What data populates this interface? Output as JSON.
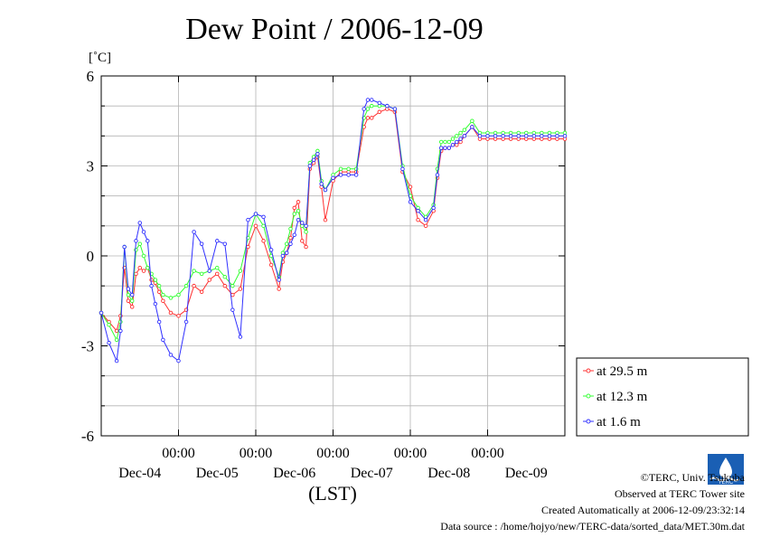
{
  "chart_data": {
    "type": "line",
    "title": "Dew Point / 2006-12-09",
    "ylabel": "[˚C]",
    "xlabel": "(LST)",
    "ylim": [
      -6,
      6
    ],
    "xlim": [
      -1.0,
      5.0
    ],
    "yticks": [
      6,
      3,
      0,
      -3,
      -6
    ],
    "yticklabels": [
      "6",
      "3",
      "0",
      "-3",
      "-6"
    ],
    "xticks": [
      0,
      1,
      2,
      3,
      4
    ],
    "xticklabels": [
      "00:00",
      "00:00",
      "00:00",
      "00:00",
      "00:00"
    ],
    "xdaylabels": [
      {
        "x": -0.5,
        "label": "Dec-04"
      },
      {
        "x": 0.5,
        "label": "Dec-05"
      },
      {
        "x": 1.5,
        "label": "Dec-06"
      },
      {
        "x": 2.5,
        "label": "Dec-07"
      },
      {
        "x": 3.5,
        "label": "Dec-08"
      },
      {
        "x": 4.5,
        "label": "Dec-09"
      }
    ],
    "grid": true,
    "legend_position": "right",
    "series": [
      {
        "name": "at 29.5 m",
        "color": "#ff3030",
        "x": [
          -1.0,
          -0.9,
          -0.8,
          -0.75,
          -0.7,
          -0.65,
          -0.6,
          -0.55,
          -0.5,
          -0.45,
          -0.4,
          -0.35,
          -0.3,
          -0.25,
          -0.2,
          -0.1,
          0.0,
          0.1,
          0.2,
          0.3,
          0.4,
          0.5,
          0.6,
          0.7,
          0.8,
          0.9,
          1.0,
          1.1,
          1.2,
          1.3,
          1.35,
          1.4,
          1.45,
          1.5,
          1.55,
          1.6,
          1.65,
          1.7,
          1.75,
          1.8,
          1.85,
          1.9,
          2.0,
          2.1,
          2.2,
          2.3,
          2.4,
          2.45,
          2.5,
          2.6,
          2.7,
          2.8,
          2.9,
          3.0,
          3.1,
          3.2,
          3.3,
          3.35,
          3.4,
          3.45,
          3.5,
          3.55,
          3.6,
          3.65,
          3.7,
          3.8,
          3.9,
          4.0,
          4.1,
          4.2,
          4.3,
          4.4,
          4.5,
          4.6,
          4.7,
          4.8,
          4.9,
          5.0
        ],
        "y": [
          -1.9,
          -2.2,
          -2.5,
          -2.0,
          -0.4,
          -1.5,
          -1.7,
          -0.6,
          -0.4,
          -0.5,
          -0.4,
          -0.8,
          -0.9,
          -1.2,
          -1.5,
          -1.9,
          -2.0,
          -1.8,
          -1.0,
          -1.2,
          -0.8,
          -0.6,
          -1.0,
          -1.3,
          -1.1,
          0.3,
          1.0,
          0.5,
          -0.3,
          -1.1,
          -0.2,
          0.1,
          0.6,
          1.6,
          1.8,
          0.5,
          0.3,
          2.9,
          3.1,
          3.3,
          2.3,
          1.2,
          2.5,
          2.8,
          2.8,
          2.8,
          4.3,
          4.6,
          4.6,
          4.8,
          4.9,
          4.8,
          2.8,
          2.3,
          1.2,
          1.0,
          1.5,
          2.6,
          3.5,
          3.6,
          3.6,
          3.7,
          3.7,
          3.8,
          4.0,
          4.3,
          3.9,
          3.9,
          3.9,
          3.9,
          3.9,
          3.9,
          3.9,
          3.9,
          3.9,
          3.9,
          3.9,
          3.9
        ]
      },
      {
        "name": "at 12.3 m",
        "color": "#30ff30",
        "x": [
          -1.0,
          -0.9,
          -0.8,
          -0.75,
          -0.7,
          -0.65,
          -0.6,
          -0.55,
          -0.5,
          -0.45,
          -0.4,
          -0.35,
          -0.3,
          -0.25,
          -0.2,
          -0.1,
          0.0,
          0.1,
          0.2,
          0.3,
          0.4,
          0.5,
          0.6,
          0.7,
          0.8,
          0.9,
          1.0,
          1.1,
          1.2,
          1.3,
          1.35,
          1.4,
          1.45,
          1.5,
          1.55,
          1.6,
          1.65,
          1.7,
          1.75,
          1.8,
          1.85,
          1.9,
          2.0,
          2.1,
          2.2,
          2.3,
          2.4,
          2.45,
          2.5,
          2.6,
          2.7,
          2.8,
          2.9,
          3.0,
          3.1,
          3.2,
          3.3,
          3.35,
          3.4,
          3.45,
          3.5,
          3.55,
          3.6,
          3.65,
          3.7,
          3.8,
          3.9,
          4.0,
          4.1,
          4.2,
          4.3,
          4.4,
          4.5,
          4.6,
          4.7,
          4.8,
          4.9,
          5.0
        ],
        "y": [
          -1.9,
          -2.3,
          -2.8,
          -2.2,
          0.3,
          -1.3,
          -1.5,
          0.2,
          0.4,
          0.0,
          -0.4,
          -0.6,
          -0.8,
          -1.0,
          -1.3,
          -1.4,
          -1.3,
          -1.0,
          -0.5,
          -0.6,
          -0.5,
          -0.4,
          -0.7,
          -1.0,
          -0.5,
          0.6,
          1.4,
          1.0,
          0.0,
          -0.7,
          0.1,
          0.4,
          0.9,
          1.4,
          1.5,
          1.0,
          0.8,
          3.1,
          3.3,
          3.5,
          2.5,
          2.2,
          2.7,
          2.9,
          2.9,
          2.9,
          4.6,
          4.9,
          5.0,
          5.0,
          5.0,
          4.9,
          3.0,
          2.0,
          1.6,
          1.3,
          1.7,
          2.9,
          3.8,
          3.8,
          3.8,
          3.9,
          4.0,
          4.1,
          4.2,
          4.5,
          4.1,
          4.1,
          4.1,
          4.1,
          4.1,
          4.1,
          4.1,
          4.1,
          4.1,
          4.1,
          4.1,
          4.1
        ]
      },
      {
        "name": "at 1.6 m",
        "color": "#3030ff",
        "x": [
          -1.0,
          -0.9,
          -0.8,
          -0.75,
          -0.7,
          -0.65,
          -0.6,
          -0.55,
          -0.5,
          -0.45,
          -0.4,
          -0.35,
          -0.3,
          -0.25,
          -0.2,
          -0.1,
          0.0,
          0.1,
          0.2,
          0.3,
          0.4,
          0.5,
          0.6,
          0.7,
          0.8,
          0.9,
          1.0,
          1.1,
          1.2,
          1.3,
          1.35,
          1.4,
          1.45,
          1.5,
          1.55,
          1.6,
          1.65,
          1.7,
          1.75,
          1.8,
          1.85,
          1.9,
          2.0,
          2.1,
          2.2,
          2.3,
          2.4,
          2.45,
          2.5,
          2.6,
          2.7,
          2.8,
          2.9,
          3.0,
          3.1,
          3.2,
          3.3,
          3.35,
          3.4,
          3.45,
          3.5,
          3.55,
          3.6,
          3.65,
          3.7,
          3.8,
          3.9,
          4.0,
          4.1,
          4.2,
          4.3,
          4.4,
          4.5,
          4.6,
          4.7,
          4.8,
          4.9,
          5.0
        ],
        "y": [
          -1.9,
          -2.9,
          -3.5,
          -2.5,
          0.3,
          -1.1,
          -1.3,
          0.5,
          1.1,
          0.8,
          0.5,
          -1.0,
          -1.6,
          -2.2,
          -2.8,
          -3.3,
          -3.5,
          -2.2,
          0.8,
          0.4,
          -0.5,
          0.5,
          0.4,
          -1.8,
          -2.7,
          1.2,
          1.4,
          1.3,
          0.2,
          -0.8,
          0.0,
          0.1,
          0.4,
          0.7,
          1.2,
          1.1,
          1.0,
          3.0,
          3.2,
          3.4,
          2.4,
          2.2,
          2.6,
          2.7,
          2.7,
          2.7,
          4.9,
          5.2,
          5.2,
          5.1,
          5.0,
          4.9,
          2.9,
          1.8,
          1.5,
          1.2,
          1.6,
          2.7,
          3.6,
          3.6,
          3.6,
          3.7,
          3.8,
          3.9,
          4.0,
          4.3,
          4.0,
          4.0,
          4.0,
          4.0,
          4.0,
          4.0,
          4.0,
          4.0,
          4.0,
          4.0,
          4.0,
          4.0
        ]
      }
    ]
  },
  "credits": {
    "copyright": "©TERC, Univ. Tsukuba",
    "observed": "Observed at TERC Tower site",
    "created": "Created Automatically at 2006-12-09/23:32:14",
    "source": "Data source : /home/hojyo/new/TERC-data/sorted_data/MET.30m.dat"
  },
  "logo": {
    "name": "TERC",
    "color": "#1a5fb4"
  }
}
